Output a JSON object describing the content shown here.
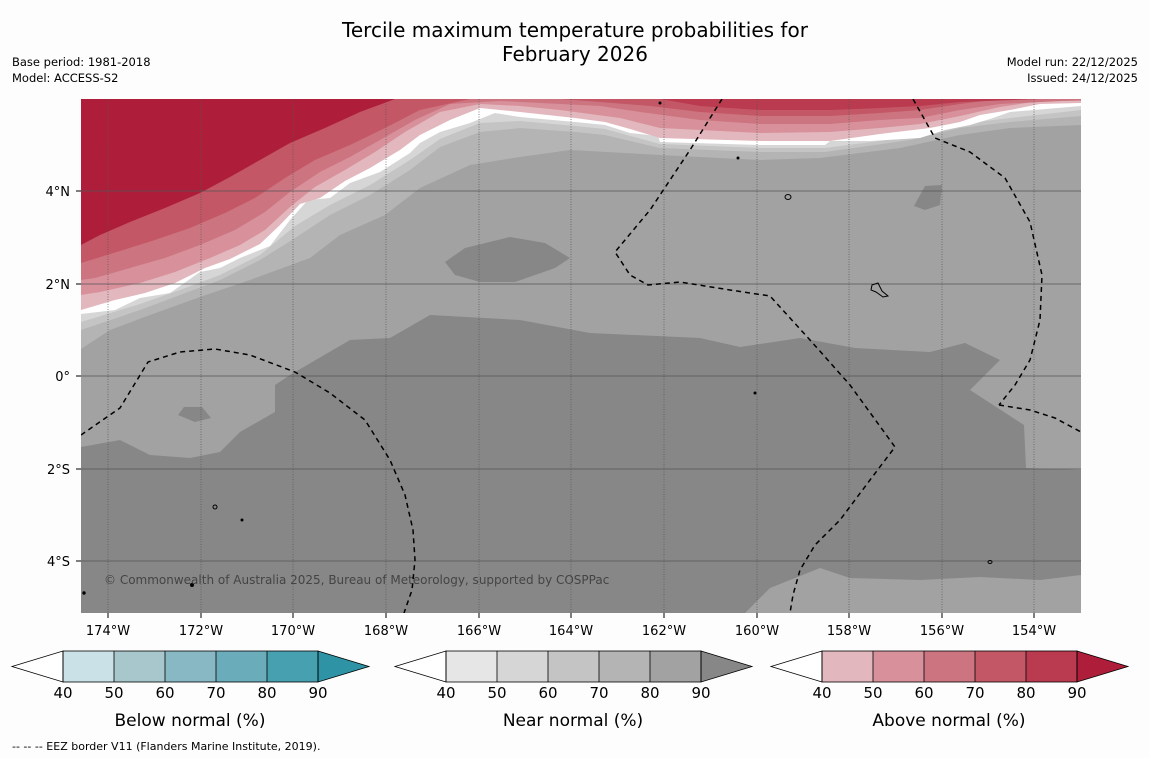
{
  "title": {
    "line1": "Tercile maximum temperature probabilities for",
    "line2": "February 2026"
  },
  "meta_left": {
    "base_period": "Base period: 1981-2018",
    "model": "Model: ACCESS-S2"
  },
  "meta_right": {
    "model_run": "Model run: 22/12/2025",
    "issued": "Issued: 24/12/2025"
  },
  "map": {
    "lon_labels": [
      "174°W",
      "172°W",
      "170°W",
      "168°W",
      "166°W",
      "164°W",
      "162°W",
      "160°W",
      "158°W",
      "156°W",
      "154°W"
    ],
    "lat_labels": [
      "4°N",
      "2°N",
      "0°",
      "2°S",
      "4°S"
    ],
    "copyright": "© Commonwealth of Australia 2025, Bureau of Meteorology, supported by COSPPac"
  },
  "colorbars": {
    "ticks": [
      "40",
      "50",
      "60",
      "70",
      "80",
      "90"
    ],
    "below": {
      "label": "Below normal (%)",
      "colors": [
        "#ffffff",
        "#c9e1e7",
        "#a7c7cd",
        "#88b8c4",
        "#6aacb9",
        "#47a0b0",
        "#2e93a5"
      ]
    },
    "near": {
      "label": "Near normal (%)",
      "colors": [
        "#ffffff",
        "#e6e6e6",
        "#d6d6d6",
        "#c4c4c4",
        "#b4b4b4",
        "#a2a2a2",
        "#878787"
      ]
    },
    "above": {
      "label": "Above normal (%)",
      "colors": [
        "#ffffff",
        "#e2b8be",
        "#d8919b",
        "#cc7580",
        "#c45766",
        "#ba3a4f",
        "#ae1e3a"
      ]
    }
  },
  "footnote": "--  --  -- EEZ border V11 (Flanders Marine Institute, 2019)."
}
